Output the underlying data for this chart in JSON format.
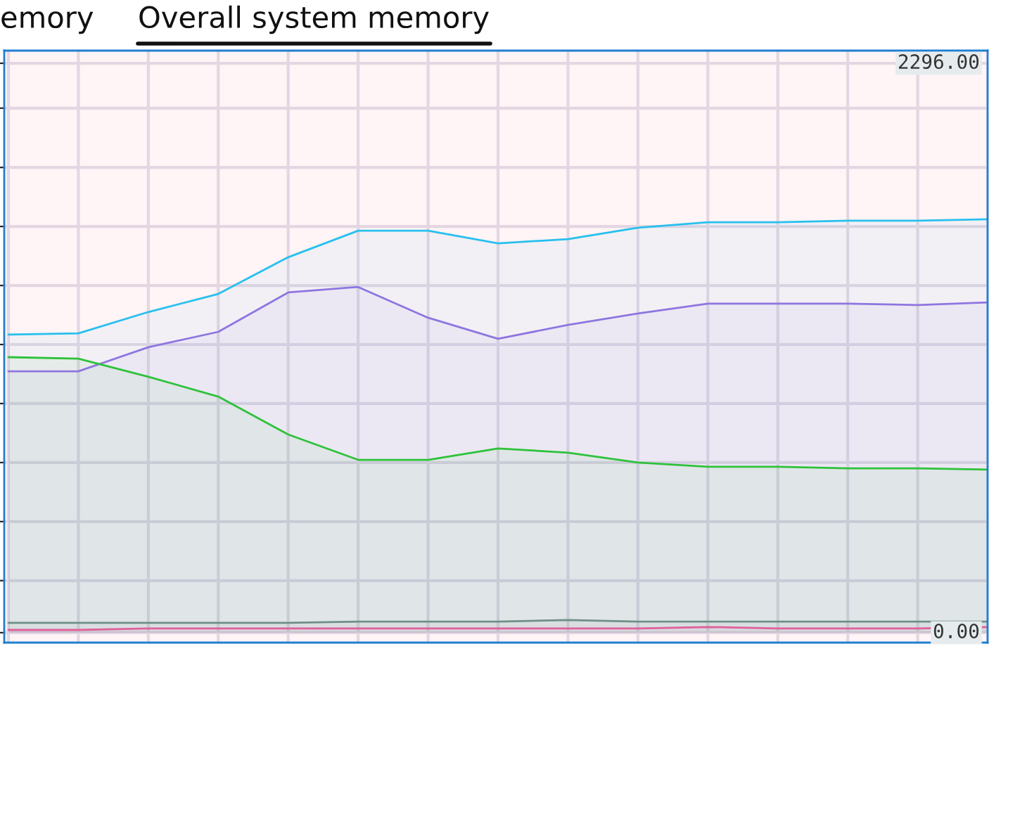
{
  "chart_data": {
    "type": "area",
    "annotations": [
      "emory",
      "Overall system memory"
    ],
    "categories": [
      null,
      null,
      null,
      null,
      null,
      null,
      null,
      null,
      null,
      null,
      null,
      null,
      null,
      null,
      null
    ],
    "series": [
      {
        "color": "#27c0ee",
        "values": [
          1202,
          1207,
          1293,
          1366,
          1514,
          1621,
          1621,
          1570,
          1587,
          1633,
          1655,
          1655,
          1661,
          1661,
          1667
        ]
      },
      {
        "color": "#8f75e0",
        "values": [
          1054,
          1054,
          1151,
          1213,
          1372,
          1394,
          1270,
          1185,
          1241,
          1287,
          1327,
          1327,
          1327,
          1321,
          1332
        ]
      },
      {
        "color": "#2ec23a",
        "values": [
          1111,
          1105,
          1032,
          952,
          799,
          697,
          697,
          743,
          726,
          686,
          669,
          669,
          663,
          663,
          658
        ]
      },
      {
        "color": "#6f8f86",
        "values": [
          40,
          40,
          40,
          40,
          40,
          45,
          45,
          45,
          51,
          45,
          45,
          45,
          45,
          45,
          45
        ]
      },
      {
        "color": "#e0609a",
        "values": [
          11,
          11,
          17,
          17,
          17,
          17,
          17,
          17,
          17,
          17,
          23,
          17,
          17,
          17,
          23
        ]
      }
    ],
    "ylim": [
      -40,
      2347
    ],
    "yticks": [
      {
        "value": 0,
        "label": "0.00"
      },
      {
        "value": 210,
        "label": null
      },
      {
        "value": 448,
        "label": null
      },
      {
        "value": 686,
        "label": null
      },
      {
        "value": 924,
        "label": null
      },
      {
        "value": 1162,
        "label": null
      },
      {
        "value": 1400,
        "label": null
      },
      {
        "value": 1638,
        "label": null
      },
      {
        "value": 1876,
        "label": null
      },
      {
        "value": 2115,
        "label": null
      },
      {
        "value": 2296,
        "label": "2296.00"
      }
    ],
    "tick_labels": "y",
    "grid": true
  }
}
